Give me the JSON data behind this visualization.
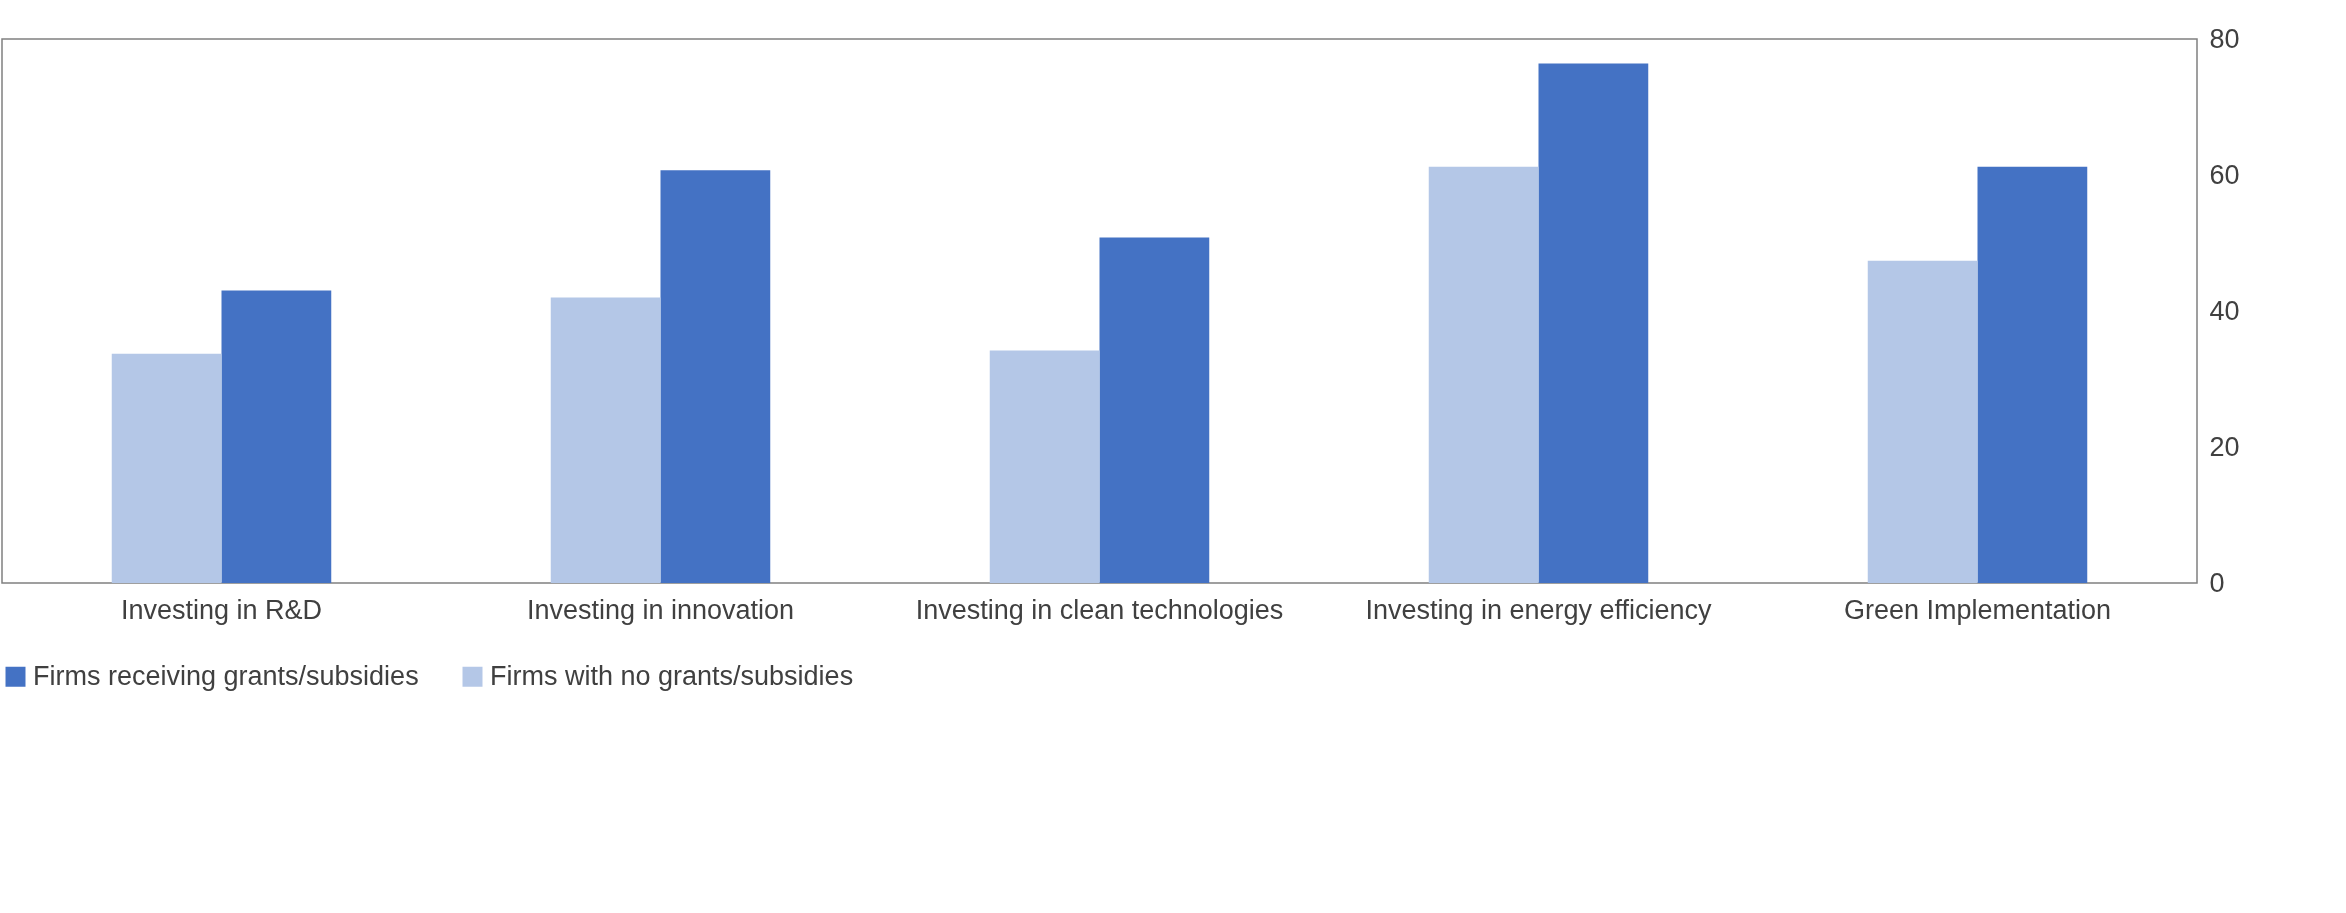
{
  "chart_data": {
    "type": "bar",
    "categories": [
      "Investing in R&D",
      "Investing in innovation",
      "Investing in clean technologies",
      "Investing in energy efficiency",
      "Green Implementation"
    ],
    "series": [
      {
        "name": "Firms receiving grants/subsidies",
        "color": "#4472c4",
        "values": [
          43,
          60.7,
          50.8,
          76.4,
          61.2
        ]
      },
      {
        "name": "Firms with no grants/subsidies",
        "color": "#b4c7e7",
        "values": [
          33.7,
          42,
          34.2,
          61.2,
          47.4
        ]
      }
    ],
    "ylim": [
      0,
      80
    ],
    "yticks": [
      0,
      20,
      40,
      60,
      80
    ],
    "grid": false,
    "legend": "bottom"
  }
}
